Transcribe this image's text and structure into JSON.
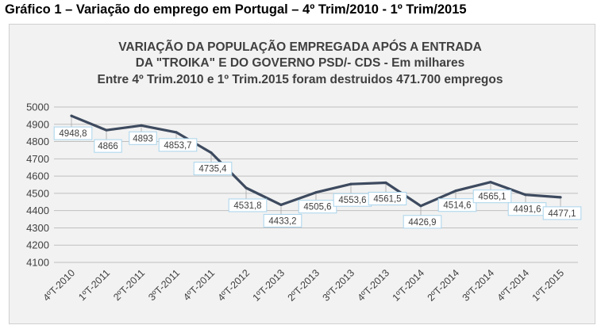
{
  "caption": "Gráfico 1  – Variação do emprego em Portugal – 4º Trim/2010 - 1º Trim/2015",
  "chart_data": {
    "type": "line",
    "title_lines": [
      "VARIAÇÃO DA POPULAÇÃO EMPREGADA APÓS A ENTRADA",
      "DA \"TROIKA\" E DO GOVERNO PSD/- CDS - Em milhares",
      "Entre 4º Trim.2010 e 1º Trim.2015 foram destruidos 471.700 empregos"
    ],
    "xlabel": "",
    "ylabel": "",
    "ylim": [
      4100,
      5000
    ],
    "yticks": [
      4100,
      4200,
      4300,
      4400,
      4500,
      4600,
      4700,
      4800,
      4900,
      5000
    ],
    "grid": true,
    "legend": "none",
    "categories": [
      "4ºT-2010",
      "1ºT-2011",
      "2ºT-2011",
      "3ºT-2011",
      "4ºT-2011",
      "4ºT-2012",
      "1ºT-2013",
      "2ºT-2013",
      "3ºT-2013",
      "4ºT-2013",
      "1ºT-2014",
      "2ºT-2014",
      "3ºT-2014",
      "4ºT-2014",
      "1ºT-2015"
    ],
    "values": [
      4948.8,
      4866,
      4893,
      4853.7,
      4735.4,
      4531.8,
      4433.2,
      4505.6,
      4553.6,
      4561.5,
      4426.9,
      4514.6,
      4565.1,
      4491.6,
      4477.1
    ],
    "data_labels": [
      "4948,8",
      "4866",
      "4893",
      "4853,7",
      "4735,4",
      "4531,8",
      "4433,2",
      "4505,6",
      "4553,6",
      "4561,5",
      "4426,9",
      "4514,6",
      "4565,1",
      "4491,6",
      "4477,1"
    ],
    "colors": {
      "line": "#3d4a5f",
      "grid": "#bfbfbf",
      "background": "#f2f2f2",
      "label_border": "#a9d4ec"
    }
  }
}
